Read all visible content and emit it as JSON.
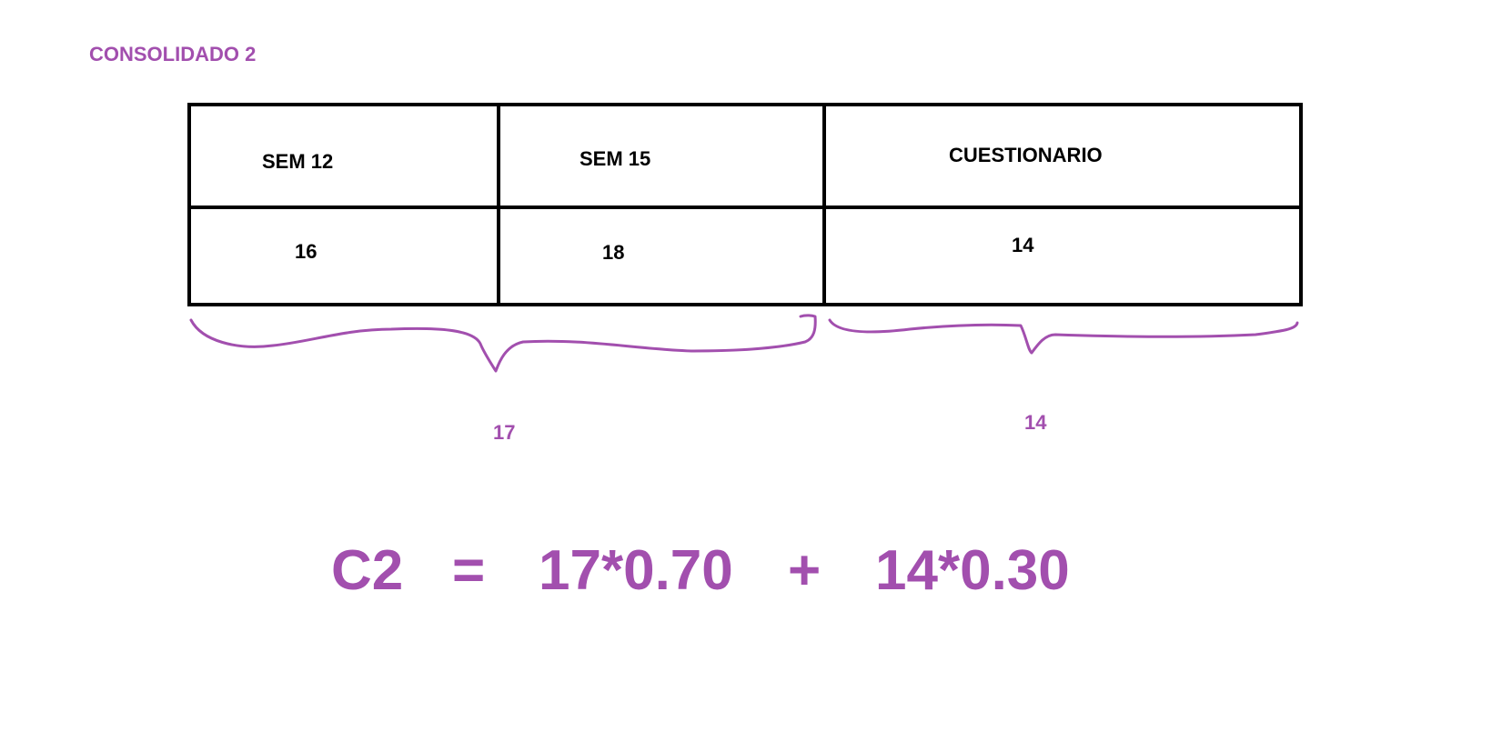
{
  "title": "CONSOLIDADO 2",
  "table": {
    "headers": [
      "SEM 12",
      "SEM 15",
      "CUESTIONARIO"
    ],
    "values": [
      "16",
      "18",
      "14"
    ]
  },
  "groups": {
    "left_result": "17",
    "right_result": "14"
  },
  "formula": {
    "lhs": "C2",
    "equals": "=",
    "term1": "17*0.70",
    "plus": "+",
    "term2": "14*0.30"
  },
  "colors": {
    "accent": "#a24fae",
    "ink": "#000000"
  }
}
